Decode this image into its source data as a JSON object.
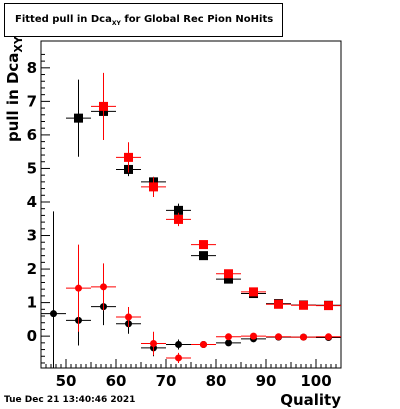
{
  "title": {
    "main": "Fitted pull in Dca",
    "sub": "XY",
    "suffix": " for Global Rec Pion NoHits"
  },
  "timestamp": "Tue Dec 21 13:40:46 2021",
  "chart_data": {
    "type": "scatter",
    "title": "Fitted pull in DcaXY for Global Rec Pion NoHits",
    "xlabel": "Quality",
    "ylabel": "pull in DcaXY",
    "xlim": [
      45,
      105
    ],
    "ylim": [
      -0.95,
      8.8
    ],
    "xticks": [
      50,
      60,
      70,
      80,
      90,
      100
    ],
    "yticks": [
      0,
      1,
      2,
      3,
      4,
      5,
      6,
      7,
      8
    ],
    "grid": true,
    "series": [
      {
        "marker": "square",
        "color": "#000000",
        "points": [
          {
            "x": 52.5,
            "y": 6.5,
            "ex": 2.5,
            "ey": 1.15
          },
          {
            "x": 57.5,
            "y": 6.7,
            "ex": 2.5,
            "ey": 0.2
          },
          {
            "x": 62.5,
            "y": 4.97,
            "ex": 2.5,
            "ey": 0.2
          },
          {
            "x": 67.5,
            "y": 4.6,
            "ex": 2.5,
            "ey": 0.15
          },
          {
            "x": 72.5,
            "y": 3.75,
            "ex": 2.5,
            "ey": 0.2
          },
          {
            "x": 77.5,
            "y": 2.4,
            "ex": 2.5,
            "ey": 0.08
          },
          {
            "x": 82.5,
            "y": 1.7,
            "ex": 2.5,
            "ey": 0.08
          },
          {
            "x": 87.5,
            "y": 1.27,
            "ex": 2.5,
            "ey": 0.05
          },
          {
            "x": 92.5,
            "y": 0.97,
            "ex": 2.5,
            "ey": 0.03
          },
          {
            "x": 97.5,
            "y": 0.93,
            "ex": 2.5,
            "ey": 0.03
          },
          {
            "x": 102.5,
            "y": 0.92,
            "ex": 2.5,
            "ey": 0.03
          }
        ]
      },
      {
        "marker": "square",
        "color": "#ff0000",
        "points": [
          {
            "x": 57.5,
            "y": 6.85,
            "ex": 2.5,
            "ey": 1.0
          },
          {
            "x": 62.5,
            "y": 5.33,
            "ex": 2.5,
            "ey": 0.45
          },
          {
            "x": 67.5,
            "y": 4.45,
            "ex": 2.5,
            "ey": 0.3
          },
          {
            "x": 72.5,
            "y": 3.48,
            "ex": 2.5,
            "ey": 0.2
          },
          {
            "x": 77.5,
            "y": 2.73,
            "ex": 2.5,
            "ey": 0.1
          },
          {
            "x": 82.5,
            "y": 1.86,
            "ex": 2.5,
            "ey": 0.08
          },
          {
            "x": 87.5,
            "y": 1.32,
            "ex": 2.5,
            "ey": 0.06
          },
          {
            "x": 92.5,
            "y": 0.95,
            "ex": 2.5,
            "ey": 0.03
          },
          {
            "x": 97.5,
            "y": 0.92,
            "ex": 2.5,
            "ey": 0.03
          },
          {
            "x": 102.5,
            "y": 0.91,
            "ex": 2.5,
            "ey": 0.03
          }
        ]
      },
      {
        "marker": "circle",
        "color": "#000000",
        "points": [
          {
            "x": 47.5,
            "y": 0.67,
            "ex": 2.5,
            "ey": 3.05
          },
          {
            "x": 52.5,
            "y": 0.47,
            "ex": 2.5,
            "ey": 0.75
          },
          {
            "x": 57.5,
            "y": 0.88,
            "ex": 2.5,
            "ey": 0.55
          },
          {
            "x": 62.5,
            "y": 0.37,
            "ex": 2.5,
            "ey": 0.3
          },
          {
            "x": 67.5,
            "y": -0.35,
            "ex": 2.5,
            "ey": 0.25
          },
          {
            "x": 72.5,
            "y": -0.25,
            "ex": 2.5,
            "ey": 0.15
          },
          {
            "x": 77.5,
            "y": -0.25,
            "ex": 2.5,
            "ey": 0.05
          },
          {
            "x": 82.5,
            "y": -0.2,
            "ex": 2.5,
            "ey": 0.05
          },
          {
            "x": 87.5,
            "y": -0.08,
            "ex": 2.5,
            "ey": 0.03
          },
          {
            "x": 92.5,
            "y": -0.03,
            "ex": 2.5,
            "ey": 0.03
          },
          {
            "x": 97.5,
            "y": -0.03,
            "ex": 2.5,
            "ey": 0.02
          },
          {
            "x": 102.5,
            "y": -0.04,
            "ex": 2.5,
            "ey": 0.02
          }
        ]
      },
      {
        "marker": "circle",
        "color": "#ff0000",
        "points": [
          {
            "x": 52.5,
            "y": 1.43,
            "ex": 2.5,
            "ey": 1.3
          },
          {
            "x": 57.5,
            "y": 1.47,
            "ex": 2.5,
            "ey": 0.7
          },
          {
            "x": 62.5,
            "y": 0.57,
            "ex": 2.5,
            "ey": 0.3
          },
          {
            "x": 67.5,
            "y": -0.22,
            "ex": 2.5,
            "ey": 0.35
          },
          {
            "x": 72.5,
            "y": -0.65,
            "ex": 2.5,
            "ey": 0.15
          },
          {
            "x": 77.5,
            "y": -0.25,
            "ex": 2.5,
            "ey": 0.05
          },
          {
            "x": 82.5,
            "y": -0.02,
            "ex": 2.5,
            "ey": 0.05
          },
          {
            "x": 87.5,
            "y": 0.0,
            "ex": 2.5,
            "ey": 0.03
          },
          {
            "x": 92.5,
            "y": -0.02,
            "ex": 2.5,
            "ey": 0.03
          },
          {
            "x": 97.5,
            "y": -0.03,
            "ex": 2.5,
            "ey": 0.02
          },
          {
            "x": 102.5,
            "y": -0.02,
            "ex": 2.5,
            "ey": 0.02
          }
        ]
      }
    ]
  }
}
